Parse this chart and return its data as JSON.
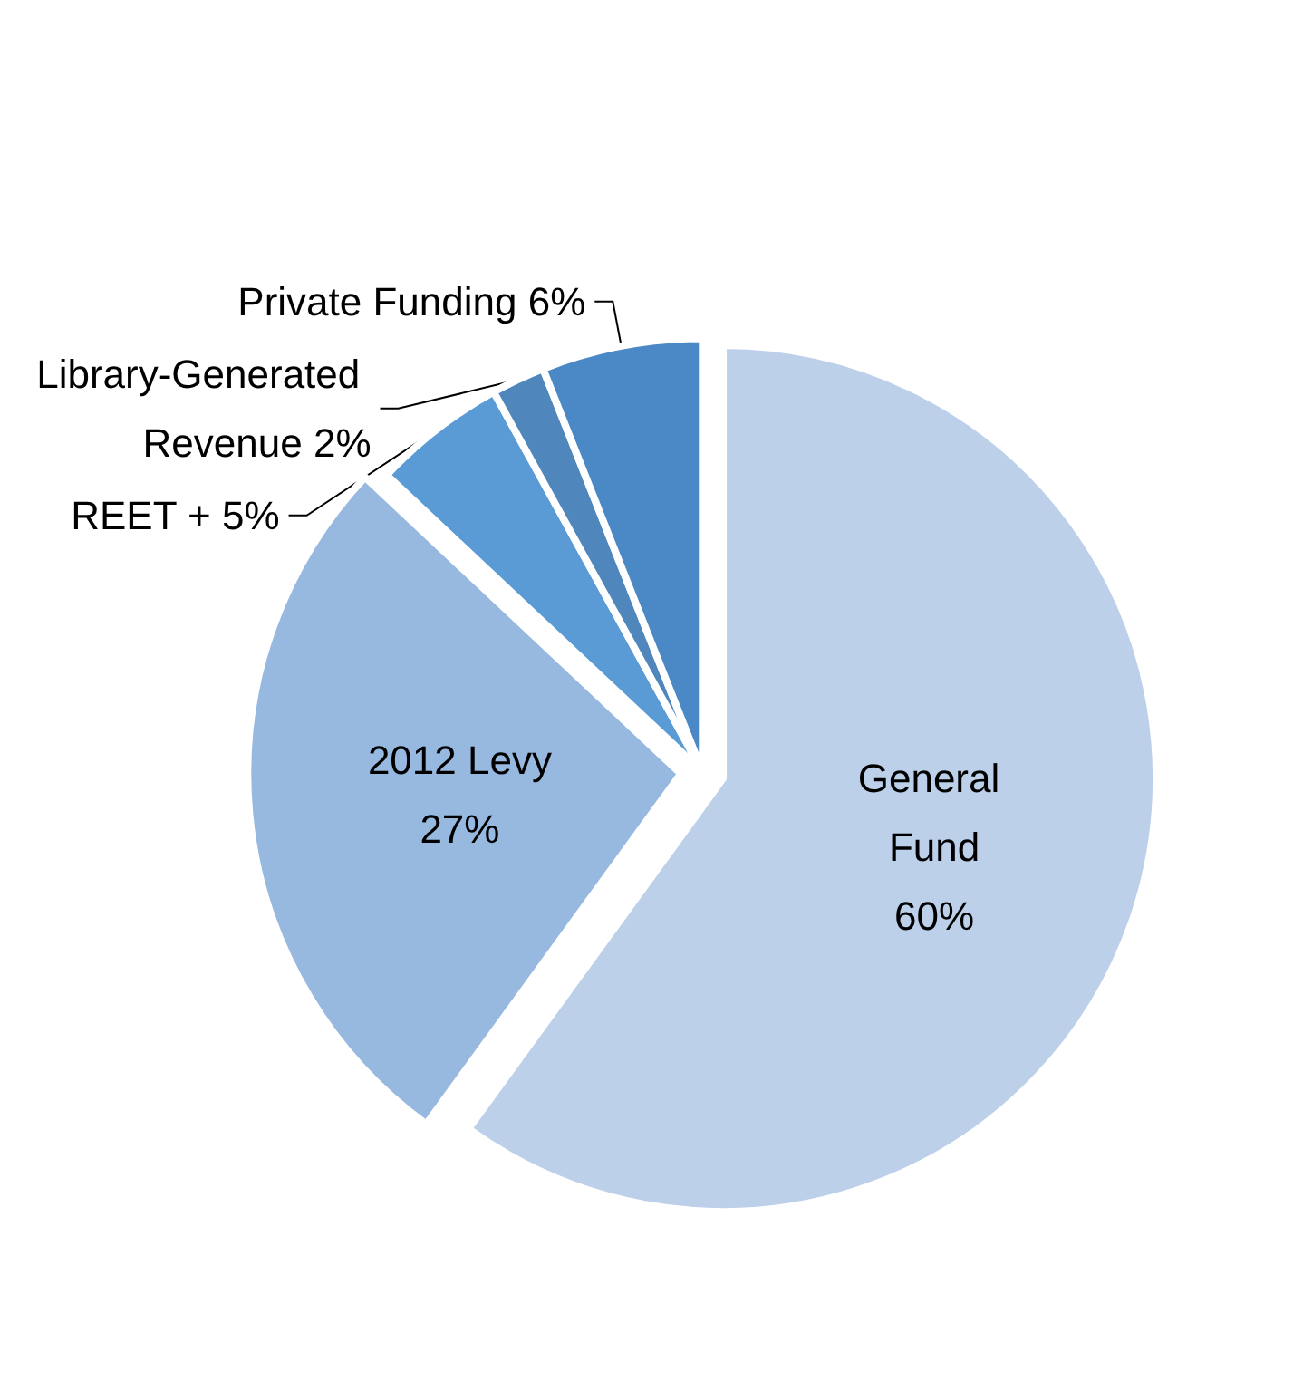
{
  "chart_data": {
    "type": "pie",
    "categories": [
      "General Fund",
      "2012 Levy",
      "REET +",
      "Library-Generated Revenue",
      "Private Funding"
    ],
    "values": [
      60,
      27,
      5,
      2,
      6
    ],
    "value_labels": [
      "60%",
      "27%",
      "5%",
      "2%",
      "6%"
    ],
    "colors": [
      "#bdd0ea",
      "#97b8df",
      "#5b9bd5",
      "#4f87bd",
      "#4a89c6"
    ],
    "legend": false
  }
}
